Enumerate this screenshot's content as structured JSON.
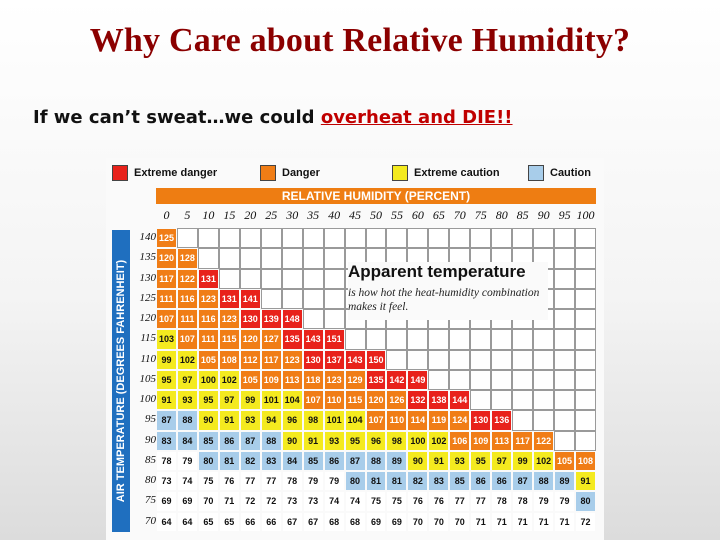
{
  "slide": {
    "title": "Why Care about Relative Humidity?",
    "subtitle_prefix": "If  we can’t sweat…we could ",
    "subtitle_emph": "overheat and DIE!!"
  },
  "chart_data": {
    "type": "heatmap",
    "header": "RELATIVE HUMIDITY (PERCENT)",
    "ylabel": "AIR TEMPERATURE (DEGREES FAHRENHEIT)",
    "annotation_title": "Apparent temperature",
    "annotation_body": "is how hot the heat-humidity combination makes it feel.",
    "legend": [
      {
        "label": "Extreme danger",
        "color": "#e8221b"
      },
      {
        "label": "Danger",
        "color": "#f07d16"
      },
      {
        "label": "Extreme caution",
        "color": "#f4ea1f"
      },
      {
        "label": "Caution",
        "color": "#a8cdea"
      }
    ],
    "x": [
      "0",
      "5",
      "10",
      "15",
      "20",
      "25",
      "30",
      "35",
      "40",
      "45",
      "50",
      "55",
      "60",
      "65",
      "70",
      "75",
      "80",
      "85",
      "90",
      "95",
      "100"
    ],
    "y": [
      "140",
      "135",
      "130",
      "125",
      "120",
      "115",
      "110",
      "105",
      "100",
      "95",
      "90",
      "85",
      "80",
      "75",
      "70"
    ],
    "values": [
      [
        "125"
      ],
      [
        "120",
        "128"
      ],
      [
        "117",
        "122",
        "131"
      ],
      [
        "111",
        "116",
        "123",
        "131",
        "141"
      ],
      [
        "107",
        "111",
        "116",
        "123",
        "130",
        "139",
        "148"
      ],
      [
        "103",
        "107",
        "111",
        "115",
        "120",
        "127",
        "135",
        "143",
        "151"
      ],
      [
        "99",
        "102",
        "105",
        "108",
        "112",
        "117",
        "123",
        "130",
        "137",
        "143",
        "150"
      ],
      [
        "95",
        "97",
        "100",
        "102",
        "105",
        "109",
        "113",
        "118",
        "123",
        "129",
        "135",
        "142",
        "149"
      ],
      [
        "91",
        "93",
        "95",
        "97",
        "99",
        "101",
        "104",
        "107",
        "110",
        "115",
        "120",
        "126",
        "132",
        "138",
        "144"
      ],
      [
        "87",
        "88",
        "90",
        "91",
        "93",
        "94",
        "96",
        "98",
        "101",
        "104",
        "107",
        "110",
        "114",
        "119",
        "124",
        "130",
        "136"
      ],
      [
        "83",
        "84",
        "85",
        "86",
        "87",
        "88",
        "90",
        "91",
        "93",
        "95",
        "96",
        "98",
        "100",
        "102",
        "106",
        "109",
        "113",
        "117",
        "122"
      ],
      [
        "78",
        "79",
        "80",
        "81",
        "82",
        "83",
        "84",
        "85",
        "86",
        "87",
        "88",
        "89",
        "90",
        "91",
        "93",
        "95",
        "97",
        "99",
        "102",
        "105",
        "108"
      ],
      [
        "73",
        "74",
        "75",
        "76",
        "77",
        "77",
        "78",
        "79",
        "79",
        "80",
        "81",
        "81",
        "82",
        "83",
        "85",
        "86",
        "86",
        "87",
        "88",
        "89",
        "91"
      ],
      [
        "69",
        "69",
        "70",
        "71",
        "72",
        "72",
        "73",
        "73",
        "74",
        "74",
        "75",
        "75",
        "76",
        "76",
        "77",
        "77",
        "78",
        "78",
        "79",
        "79",
        "80"
      ],
      [
        "64",
        "64",
        "65",
        "65",
        "66",
        "66",
        "67",
        "67",
        "68",
        "68",
        "69",
        "69",
        "70",
        "70",
        "70",
        "71",
        "71",
        "71",
        "71",
        "71",
        "72"
      ]
    ]
  }
}
